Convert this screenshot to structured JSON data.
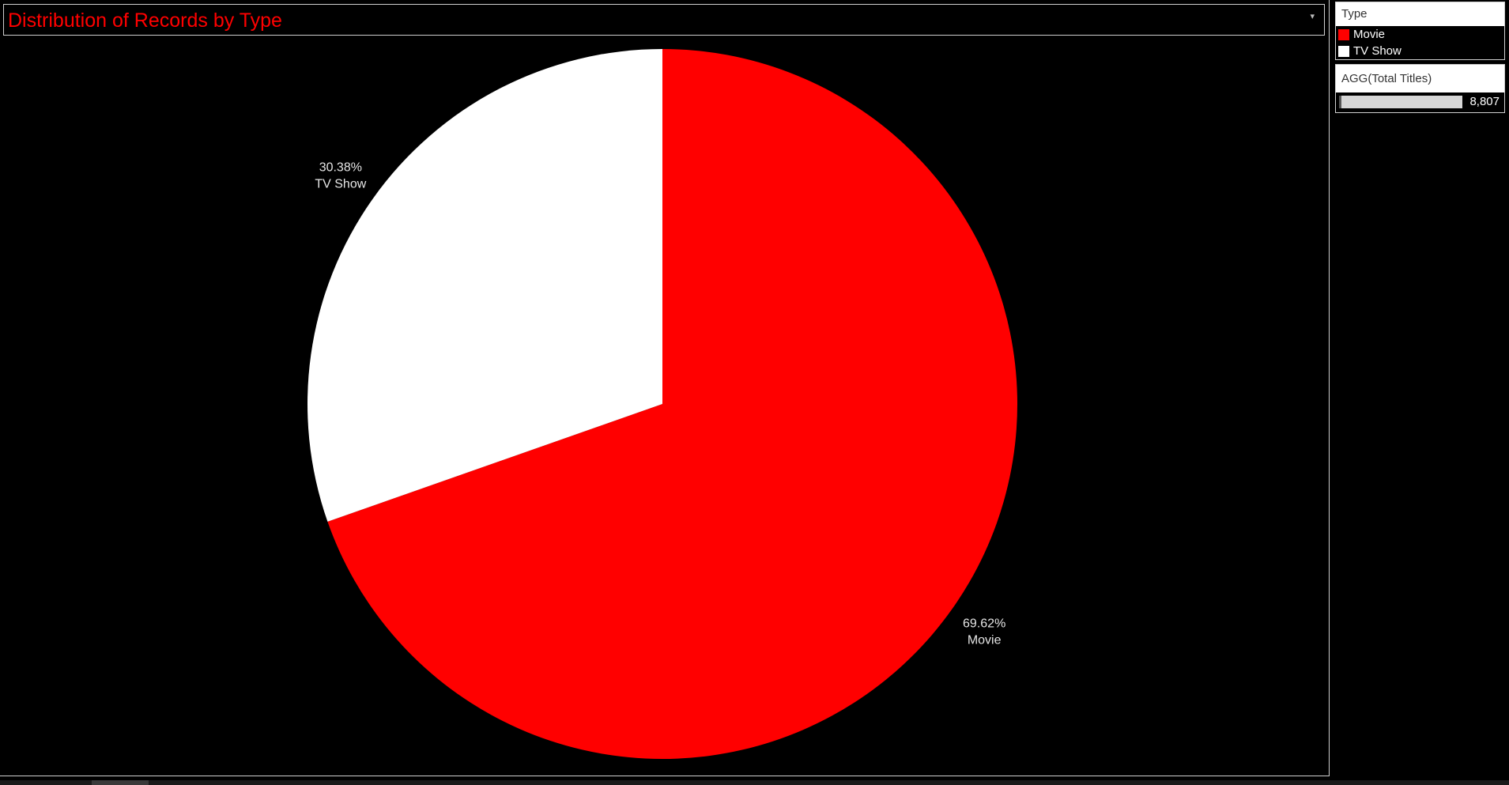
{
  "title": "Distribution of Records by Type",
  "legend": {
    "heading": "Type",
    "items": [
      {
        "label": "Movie",
        "color": "#ff0000"
      },
      {
        "label": "TV Show",
        "color": "#ffffff"
      }
    ]
  },
  "agg": {
    "heading": "AGG(Total Titles)",
    "value": "8,807"
  },
  "chart_data": {
    "type": "pie",
    "title": "Distribution of Records by Type",
    "start_angle_deg": 0,
    "direction": "clockwise",
    "slices": [
      {
        "label": "Movie",
        "value": 69.62,
        "display": "69.62%",
        "color": "#ff0000"
      },
      {
        "label": "TV Show",
        "value": 30.38,
        "display": "30.38%",
        "color": "#ffffff"
      }
    ],
    "total": "8,807"
  }
}
